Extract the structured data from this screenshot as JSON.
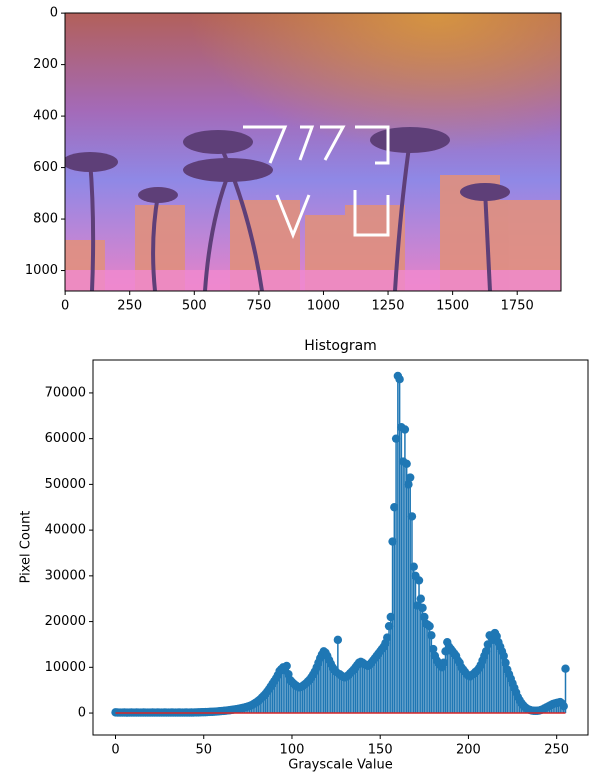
{
  "chart_data": [
    {
      "type": "image",
      "xlim": [
        -0.5,
        1919.5
      ],
      "ylim": [
        1079.5,
        -0.5
      ],
      "xticks": [
        0,
        250,
        500,
        750,
        1000,
        1250,
        1500,
        1750
      ],
      "yticks": [
        0,
        200,
        400,
        600,
        800,
        1000
      ]
    },
    {
      "type": "stem",
      "title": "Histogram",
      "xlabel": "Grayscale Value",
      "ylabel": "Pixel Count",
      "color": "#1f77b4",
      "baseline_color": "#d62728",
      "xlim": [
        -12.75,
        267.75
      ],
      "ylim": [
        -4800,
        77200
      ],
      "xticks": [
        0,
        50,
        100,
        150,
        200,
        250
      ],
      "yticks": [
        0,
        10000,
        20000,
        30000,
        40000,
        50000,
        60000,
        70000
      ],
      "x": [
        0,
        1,
        2,
        3,
        4,
        5,
        6,
        7,
        8,
        9,
        10,
        11,
        12,
        13,
        14,
        15,
        16,
        17,
        18,
        19,
        20,
        21,
        22,
        23,
        24,
        25,
        26,
        27,
        28,
        29,
        30,
        31,
        32,
        33,
        34,
        35,
        36,
        37,
        38,
        39,
        40,
        41,
        42,
        43,
        44,
        45,
        46,
        47,
        48,
        49,
        50,
        51,
        52,
        53,
        54,
        55,
        56,
        57,
        58,
        59,
        60,
        61,
        62,
        63,
        64,
        65,
        66,
        67,
        68,
        69,
        70,
        71,
        72,
        73,
        74,
        75,
        76,
        77,
        78,
        79,
        80,
        81,
        82,
        83,
        84,
        85,
        86,
        87,
        88,
        89,
        90,
        91,
        92,
        93,
        94,
        95,
        96,
        97,
        98,
        99,
        100,
        101,
        102,
        103,
        104,
        105,
        106,
        107,
        108,
        109,
        110,
        111,
        112,
        113,
        114,
        115,
        116,
        117,
        118,
        119,
        120,
        121,
        122,
        123,
        124,
        125,
        126,
        127,
        128,
        129,
        130,
        131,
        132,
        133,
        134,
        135,
        136,
        137,
        138,
        139,
        140,
        141,
        142,
        143,
        144,
        145,
        146,
        147,
        148,
        149,
        150,
        151,
        152,
        153,
        154,
        155,
        156,
        157,
        158,
        159,
        160,
        161,
        162,
        163,
        164,
        165,
        166,
        167,
        168,
        169,
        170,
        171,
        172,
        173,
        174,
        175,
        176,
        177,
        178,
        179,
        180,
        181,
        182,
        183,
        184,
        185,
        186,
        187,
        188,
        189,
        190,
        191,
        192,
        193,
        194,
        195,
        196,
        197,
        198,
        199,
        200,
        201,
        202,
        203,
        204,
        205,
        206,
        207,
        208,
        209,
        210,
        211,
        212,
        213,
        214,
        215,
        216,
        217,
        218,
        219,
        220,
        221,
        222,
        223,
        224,
        225,
        226,
        227,
        228,
        229,
        230,
        231,
        232,
        233,
        234,
        235,
        236,
        237,
        238,
        239,
        240,
        241,
        242,
        243,
        244,
        245,
        246,
        247,
        248,
        249,
        250,
        251,
        252,
        253,
        254,
        255
      ],
      "values": [
        150,
        120,
        110,
        100,
        110,
        120,
        100,
        110,
        100,
        120,
        110,
        100,
        120,
        110,
        100,
        110,
        120,
        100,
        110,
        100,
        110,
        120,
        100,
        110,
        120,
        100,
        110,
        100,
        120,
        110,
        100,
        110,
        120,
        100,
        110,
        100,
        120,
        110,
        100,
        110,
        120,
        110,
        100,
        120,
        110,
        130,
        140,
        150,
        160,
        180,
        190,
        200,
        220,
        240,
        260,
        280,
        300,
        330,
        360,
        400,
        430,
        470,
        500,
        540,
        590,
        640,
        700,
        760,
        820,
        880,
        950,
        1030,
        1110,
        1200,
        1300,
        1420,
        1550,
        1700,
        1900,
        2150,
        2400,
        2700,
        3000,
        3400,
        3800,
        4200,
        4700,
        5200,
        5800,
        6400,
        7000,
        7600,
        8300,
        9200,
        9600,
        10000,
        9400,
        10300,
        8500,
        7200,
        6800,
        6400,
        6100,
        5800,
        5600,
        5700,
        5900,
        6200,
        6500,
        6900,
        7300,
        7800,
        8400,
        9100,
        10000,
        11000,
        12000,
        12800,
        13500,
        13200,
        12500,
        11600,
        10800,
        10000,
        9500,
        9000,
        16000,
        8500,
        8200,
        7900,
        7800,
        8000,
        8300,
        8700,
        9100,
        9500,
        10000,
        10500,
        11000,
        11200,
        11000,
        10700,
        10500,
        10300,
        10600,
        11000,
        11500,
        12000,
        12500,
        13000,
        13500,
        14000,
        14500,
        15300,
        16500,
        19000,
        21000,
        37500,
        45000,
        60000,
        73700,
        73000,
        62500,
        55000,
        62000,
        54500,
        50000,
        51500,
        43000,
        32000,
        30000,
        23500,
        29000,
        25000,
        23000,
        21000,
        19500,
        19300,
        19000,
        17000,
        14000,
        12500,
        11500,
        11000,
        10500,
        10000,
        11000,
        13500,
        15500,
        14500,
        14000,
        13500,
        13000,
        12500,
        11500,
        11000,
        10000,
        9500,
        9000,
        8500,
        8200,
        8000,
        8300,
        8600,
        9000,
        9300,
        9800,
        10500,
        11500,
        12500,
        13500,
        15000,
        17000,
        16500,
        16000,
        17500,
        16800,
        15500,
        14500,
        13500,
        12500,
        11000,
        9500,
        8500,
        7500,
        6500,
        5500,
        4500,
        3500,
        2800,
        2200,
        1700,
        1300,
        1000,
        800,
        650,
        550,
        500,
        480,
        500,
        550,
        650,
        800,
        1000,
        1200,
        1400,
        1600,
        1800,
        2000,
        2100,
        2200,
        2300,
        2400,
        2100,
        1500,
        9700
      ]
    }
  ]
}
